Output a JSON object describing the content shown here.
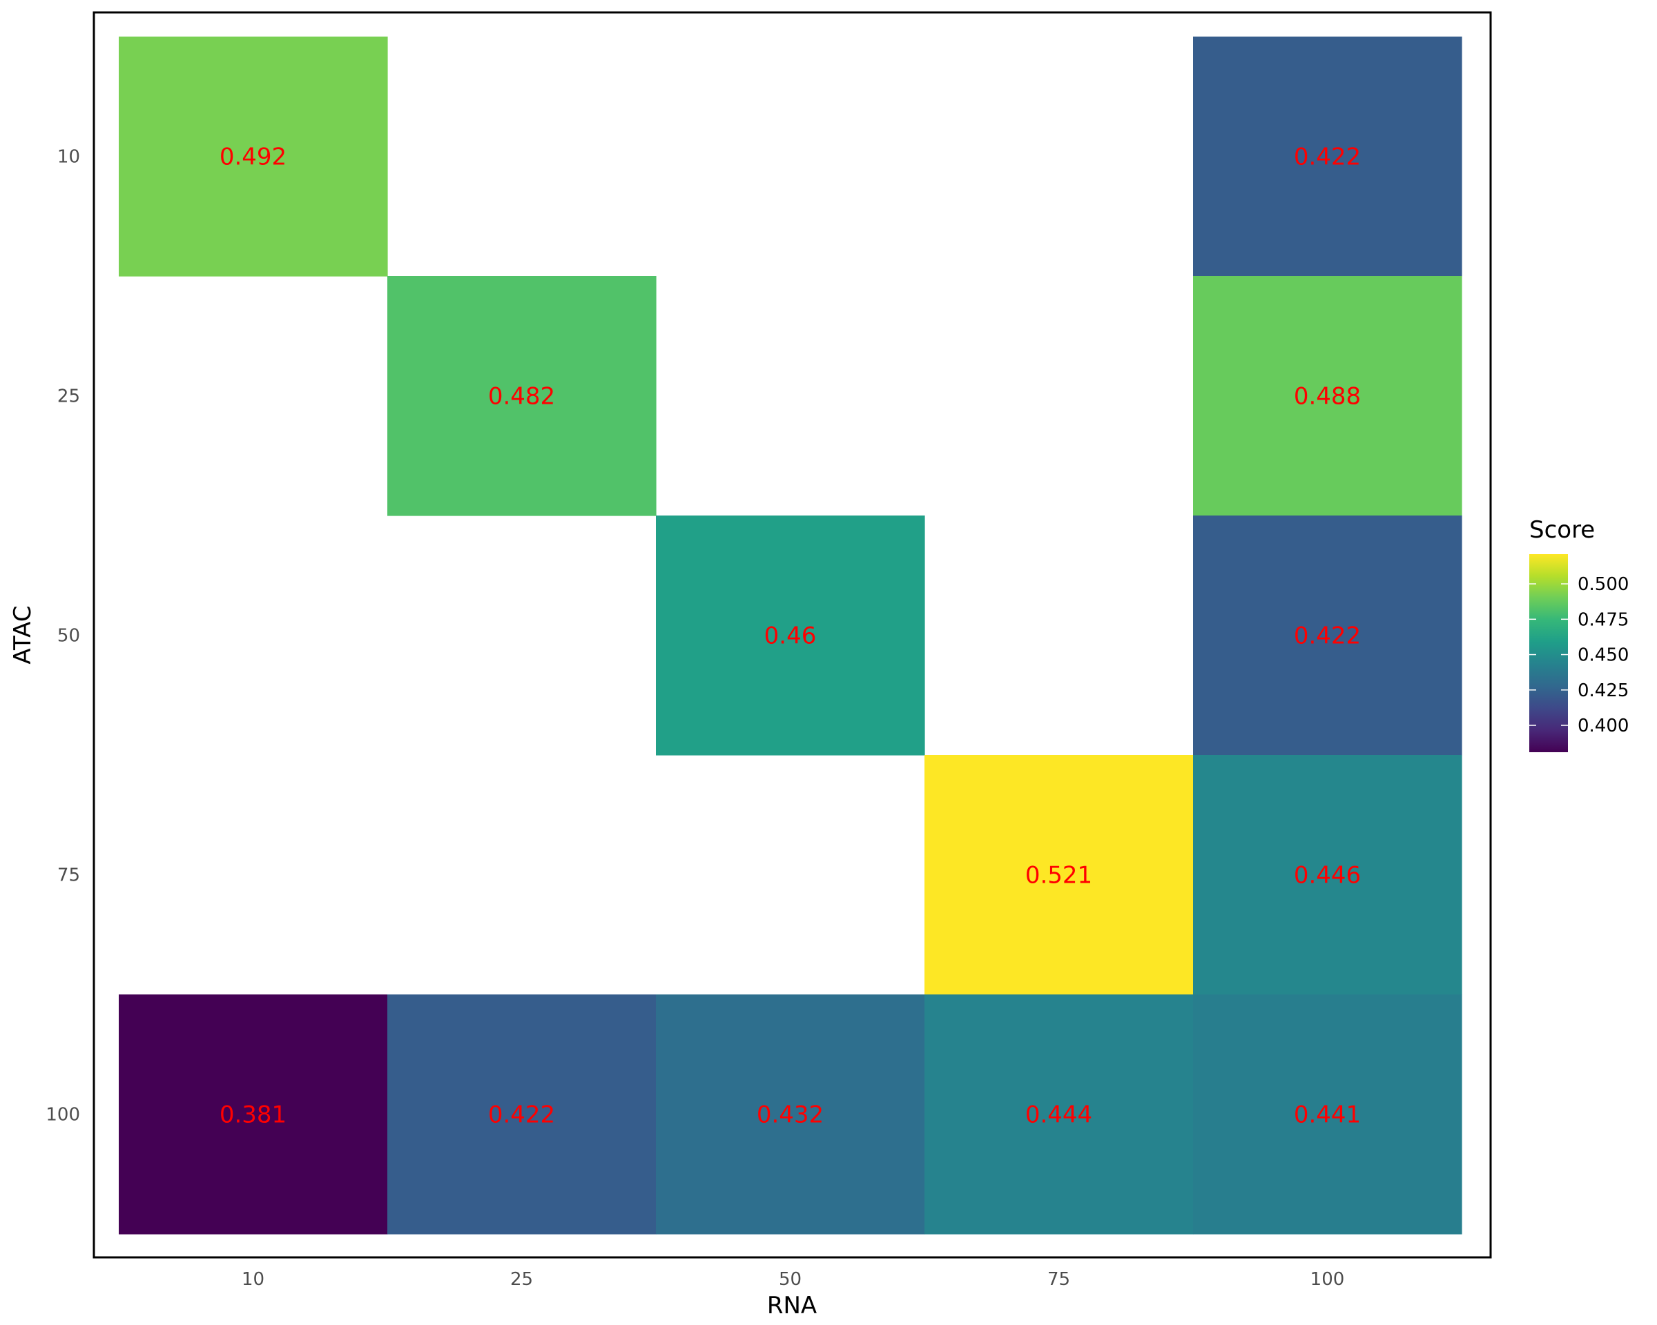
{
  "chart_data": {
    "type": "heatmap",
    "xlabel": "RNA",
    "ylabel": "ATAC",
    "x_categories": [
      "10",
      "25",
      "50",
      "75",
      "100"
    ],
    "y_categories": [
      "10",
      "25",
      "50",
      "75",
      "100"
    ],
    "cells": [
      {
        "x": "10",
        "y": "10",
        "value": 0.492,
        "label": "0.492"
      },
      {
        "x": "100",
        "y": "10",
        "value": 0.422,
        "label": "0.422"
      },
      {
        "x": "25",
        "y": "25",
        "value": 0.482,
        "label": "0.482"
      },
      {
        "x": "100",
        "y": "25",
        "value": 0.488,
        "label": "0.488"
      },
      {
        "x": "50",
        "y": "50",
        "value": 0.46,
        "label": "0.46"
      },
      {
        "x": "100",
        "y": "50",
        "value": 0.422,
        "label": "0.422"
      },
      {
        "x": "75",
        "y": "75",
        "value": 0.521,
        "label": "0.521"
      },
      {
        "x": "100",
        "y": "75",
        "value": 0.446,
        "label": "0.446"
      },
      {
        "x": "10",
        "y": "100",
        "value": 0.381,
        "label": "0.381"
      },
      {
        "x": "25",
        "y": "100",
        "value": 0.422,
        "label": "0.422"
      },
      {
        "x": "50",
        "y": "100",
        "value": 0.432,
        "label": "0.432"
      },
      {
        "x": "75",
        "y": "100",
        "value": 0.444,
        "label": "0.444"
      },
      {
        "x": "100",
        "y": "100",
        "value": 0.441,
        "label": "0.441"
      }
    ],
    "legend": {
      "title": "Score",
      "ticks": [
        0.4,
        0.425,
        0.45,
        0.475,
        0.5
      ],
      "tick_labels": [
        "0.400",
        "0.425",
        "0.450",
        "0.475",
        "0.500"
      ],
      "range": [
        0.381,
        0.521
      ],
      "placement": "right"
    },
    "colormap": "viridis",
    "label_color": "#ff0000",
    "grid": false
  }
}
